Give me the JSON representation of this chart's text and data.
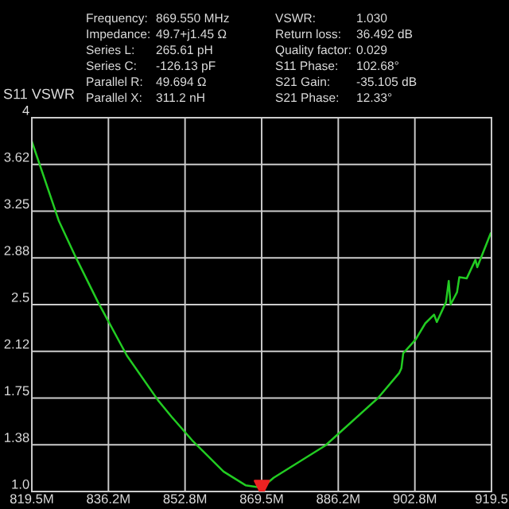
{
  "chart_data": {
    "type": "line",
    "ylabel": "S11 VSWR",
    "annotations": [
      "Frequency:",
      "869.550 MHz",
      "Impedance:",
      "49.7+j1.45 Ω",
      "Series L:",
      "265.61 pH",
      "Series C:",
      "-126.13 pF",
      "Parallel R:",
      "49.694 Ω",
      "Parallel X:",
      "311.2 nH",
      "VSWR:",
      "1.030",
      "Return loss:",
      "36.492 dB",
      "Quality factor:",
      "0.029",
      "S11 Phase:",
      "102.68°",
      "S21 Gain:",
      "-35.105 dB",
      "S21 Phase:",
      "12.33°"
    ],
    "series": [
      {
        "color": "#22cc22",
        "x": [
          819.5,
          825.4,
          828.8,
          833.9,
          840.2,
          847.0,
          849.9,
          854.4,
          861.2,
          866.0,
          869.55,
          872.1,
          883.4,
          894.8,
          899.4,
          899.9,
          900.3,
          903.0,
          905.1,
          907.0,
          907.6,
          909.6,
          910.2,
          910.6,
          912.0,
          912.5,
          914.1,
          916.0,
          916.4,
          919.3
        ],
        "values": [
          3.81,
          3.17,
          2.9,
          2.52,
          2.09,
          1.73,
          1.6,
          1.41,
          1.16,
          1.05,
          1.03,
          1.11,
          1.37,
          1.75,
          1.95,
          1.99,
          2.11,
          2.22,
          2.35,
          2.42,
          2.36,
          2.52,
          2.69,
          2.5,
          2.6,
          2.72,
          2.71,
          2.86,
          2.8,
          3.07
        ]
      },
      {
        "type": "scatter",
        "marker": "triangle",
        "color": "#ee2222",
        "x": [
          869.55
        ],
        "values": [
          1.03
        ]
      }
    ],
    "xlim": [
      819.5,
      919.5
    ],
    "ylim": [
      1.0,
      4
    ],
    "xticks": [
      {
        "value": 819.5,
        "label": "819.5M"
      },
      {
        "value": 836.1667,
        "label": "836.2M"
      },
      {
        "value": 852.8333,
        "label": "852.8M"
      },
      {
        "value": 869.5,
        "label": "869.5M"
      },
      {
        "value": 886.1667,
        "label": "886.2M"
      },
      {
        "value": 902.8333,
        "label": "902.8M"
      },
      {
        "value": 919.5,
        "label": "919.5"
      }
    ],
    "yticks": [
      {
        "value": 1.0,
        "label": "1.0"
      },
      {
        "value": 1.375,
        "label": "1.38"
      },
      1.75,
      {
        "value": 2.125,
        "label": "2.12"
      },
      2.5,
      {
        "value": 2.875,
        "label": "2.88"
      },
      3.25,
      {
        "value": 3.625,
        "label": "3.62"
      },
      4
    ],
    "grid": true,
    "legend": false
  }
}
